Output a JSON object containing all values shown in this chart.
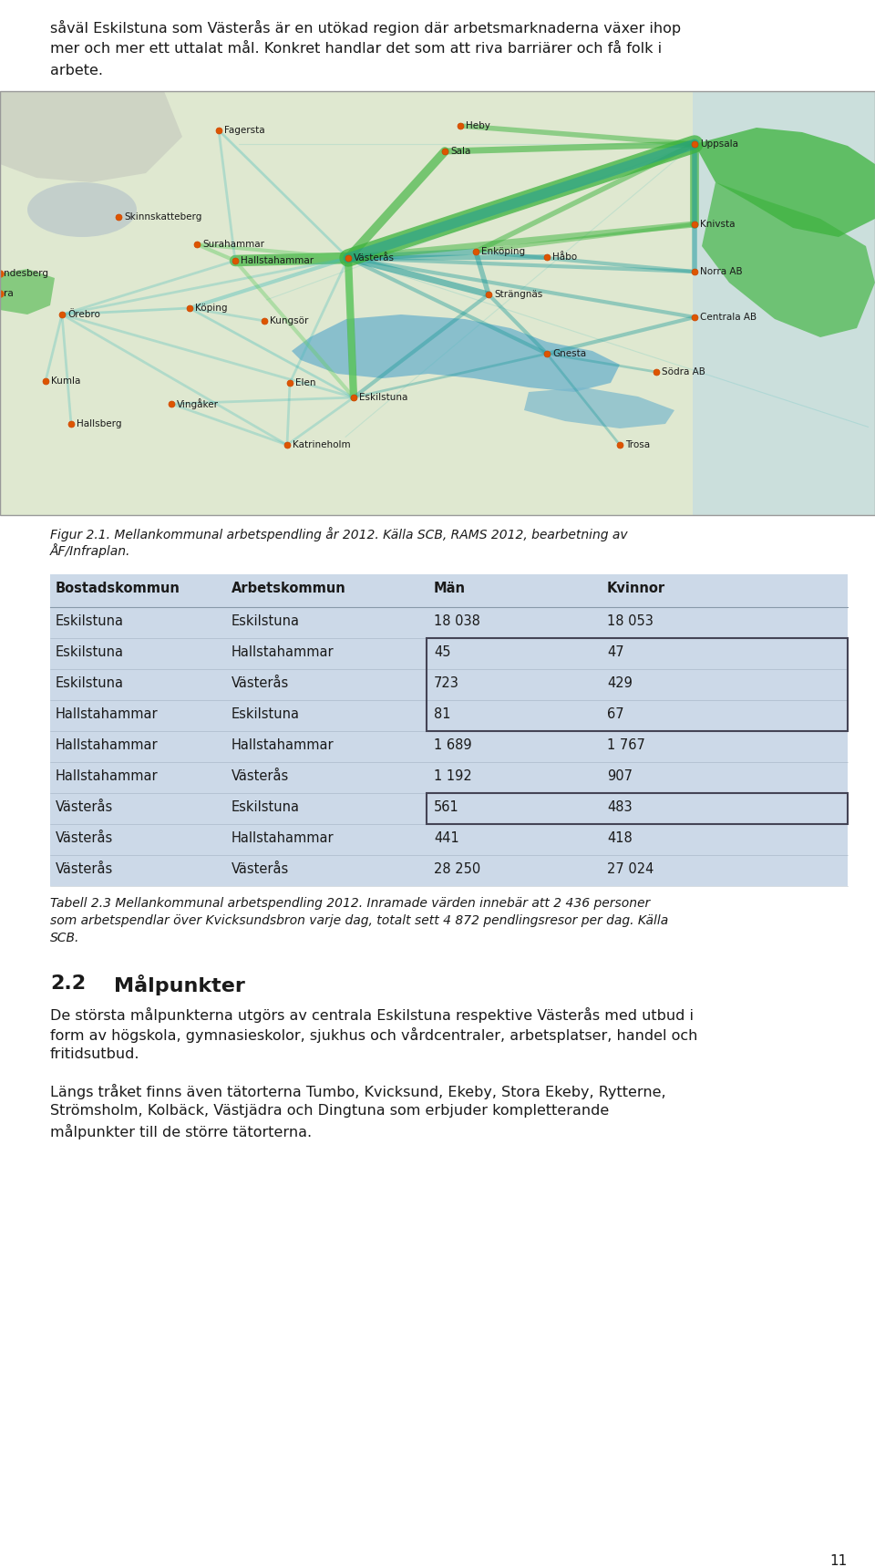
{
  "intro_line1": "såväl Eskilstuna som Västerås är en utökad region där arbetsmarknaderna växer ihop",
  "intro_line2": "mer och mer ett uttalat mål. Konkret handlar det som att riva barriärer och få folk i",
  "intro_line3": "arbete.",
  "fig_caption_line1": "Figur 2.1. Mellankommunal arbetspendling år 2012. Källa SCB, RAMS 2012, bearbetning av",
  "fig_caption_line2": "ÅF/Infraplan.",
  "table_headers": [
    "Bostadskommun",
    "Arbetskommun",
    "Män",
    "Kvinnor"
  ],
  "table_rows": [
    [
      "Eskilstuna",
      "Eskilstuna",
      "18 038",
      "18 053"
    ],
    [
      "Eskilstuna",
      "Hallstahammar",
      "45",
      "47"
    ],
    [
      "Eskilstuna",
      "Västerås",
      "723",
      "429"
    ],
    [
      "Hallstahammar",
      "Eskilstuna",
      "81",
      "67"
    ],
    [
      "Hallstahammar",
      "Hallstahammar",
      "1 689",
      "1 767"
    ],
    [
      "Hallstahammar",
      "Västerås",
      "1 192",
      "907"
    ],
    [
      "Västerås",
      "Eskilstuna",
      "561",
      "483"
    ],
    [
      "Västerås",
      "Hallstahammar",
      "441",
      "418"
    ],
    [
      "Västerås",
      "Västerås",
      "28 250",
      "27 024"
    ]
  ],
  "table_bg": "#ccd9e8",
  "box_color": "#444455",
  "table_caption_line1": "Tabell 2.3 Mellankommunal arbetspendling 2012. Inramade värden innebär att 2 436 personer",
  "table_caption_line2": "som arbetspendlar över Kvicksundsbron varje dag, totalt sett 4 872 pendlingsresor per dag. Källa",
  "table_caption_line3": "SCB.",
  "section_title_num": "2.2",
  "section_title_text": "Målpunkter",
  "section_text1_line1": "De största målpunkterna utgörs av centrala Eskilstuna respektive Västerås med utbud i",
  "section_text1_line2": "form av högskola, gymnasieskolor, sjukhus och vårdcentraler, arbetsplatser, handel och",
  "section_text1_line3": "fritidsutbud.",
  "section_text2_line1": "Längs tråket finns även tätorterna Tumbo, Kvicksund, Ekeby, Stora Ekeby, Rytterne,",
  "section_text2_line2": "Strömsholm, Kolbäck, Västjädra och Dingtuna som erbjuder kompletterande",
  "section_text2_line3": "målpunkter till de större tätorterna.",
  "page_number": "11",
  "bg_color": "#ffffff",
  "text_color": "#1a1a1a",
  "map_land_color": "#dfe8d0",
  "map_water_color": "#9ecfdb",
  "map_coast_color": "#b8d8e8"
}
